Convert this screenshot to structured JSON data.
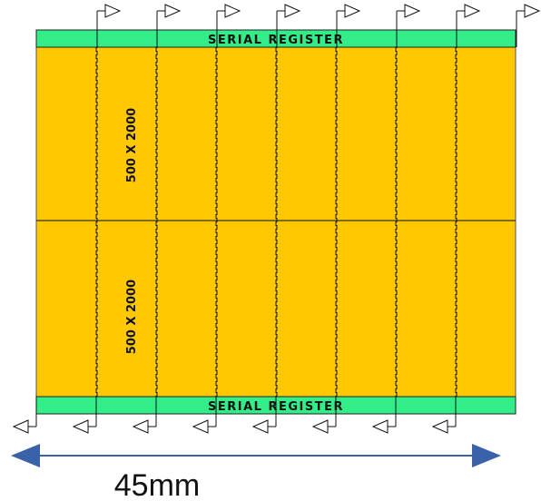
{
  "diagram": {
    "top_register": {
      "label": "SERIAL REGISTER"
    },
    "bottom_register": {
      "label": "SERIAL REGISTER"
    },
    "sections": [
      {
        "label": "500 X 2000"
      },
      {
        "label": "500 X 2000"
      }
    ],
    "top_outputs": 8,
    "bottom_outputs": 8,
    "dimension": {
      "label": "45mm"
    },
    "colors": {
      "ccd": "#FFC800",
      "register": "#33EE88",
      "arrow": "#3A62A8",
      "line": "#000000"
    }
  }
}
